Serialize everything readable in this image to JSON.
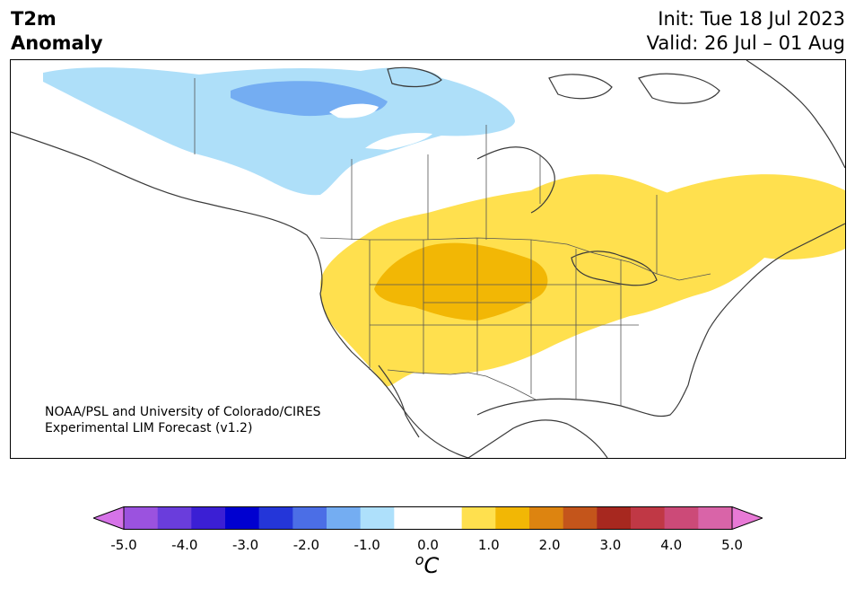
{
  "header": {
    "title_line1": "T2m",
    "title_line2": "Anomaly",
    "init": "Init: Tue 18 Jul 2023",
    "valid": "Valid: 26 Jul – 01 Aug"
  },
  "map": {
    "region": "North America",
    "credit_line1": "NOAA/PSL and University of Colorado/CIRES",
    "credit_line2": "Experimental LIM Forecast (v1.2)",
    "anomaly_regions": [
      {
        "name": "Northern Canada",
        "anomaly_c": -1.0
      },
      {
        "name": "Central Arctic Canada",
        "anomaly_c": -1.5
      },
      {
        "name": "Central/Western US and Great Lakes",
        "anomaly_c": 1.0
      },
      {
        "name": "Northern Plains / Rockies",
        "anomaly_c": 1.5
      },
      {
        "name": "Eastern Canada / Quebec",
        "anomaly_c": 1.0
      }
    ]
  },
  "colorbar": {
    "colors": [
      "#d673e8",
      "#9b52df",
      "#6a3ddc",
      "#3b1fd4",
      "#0000d0",
      "#2436d9",
      "#4b6ee6",
      "#74adf2",
      "#aee0fb",
      "#ffffff",
      "#ffffff",
      "#ffe04e",
      "#f2b705",
      "#dd8410",
      "#c4551b",
      "#a7281f",
      "#c03845",
      "#cc4a78",
      "#d964a8",
      "#e87ad6"
    ],
    "ticks": [
      "-5.0",
      "-4.0",
      "-3.0",
      "-2.0",
      "-1.0",
      "0.0",
      "1.0",
      "2.0",
      "3.0",
      "4.0",
      "5.0"
    ],
    "tick_values": [
      -5,
      -4,
      -3,
      -2,
      -1,
      0,
      1,
      2,
      3,
      4,
      5
    ],
    "units_base": "C",
    "units_sup": "o"
  }
}
